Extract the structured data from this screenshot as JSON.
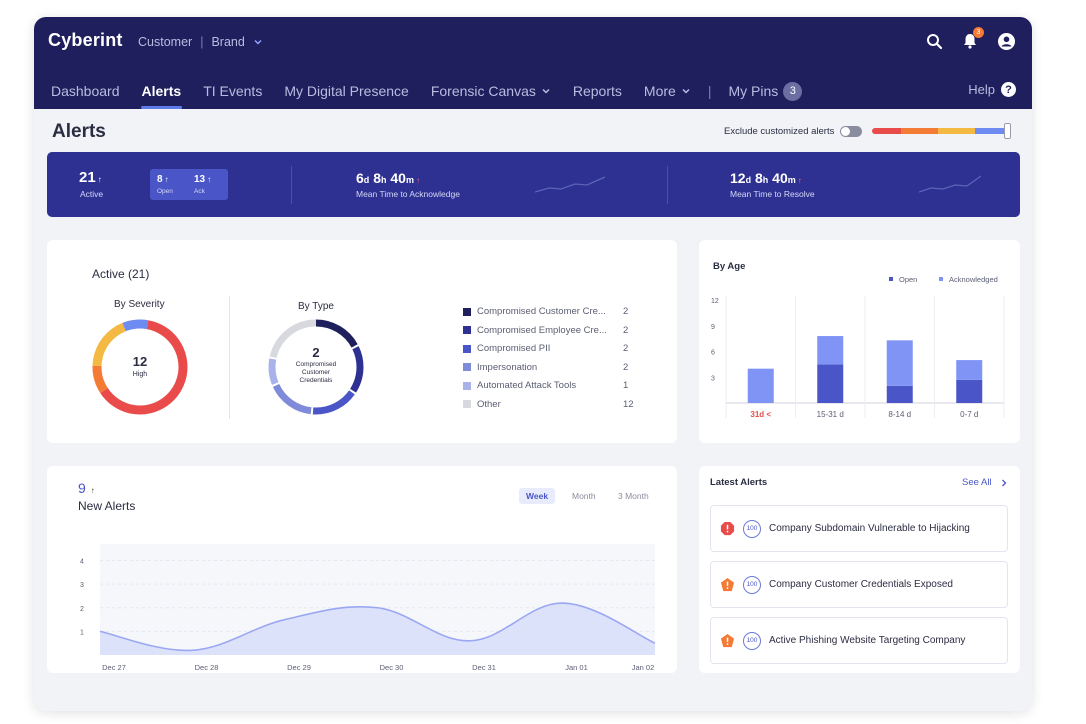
{
  "app": {
    "logo": "Cyberint",
    "crumb_customer": "Customer",
    "crumb_brand": "Brand",
    "notifications_count": "3"
  },
  "nav": {
    "items": [
      "Dashboard",
      "Alerts",
      "TI Events",
      "My Digital Presence",
      "Forensic Canvas",
      "Reports",
      "More"
    ],
    "active": "Alerts",
    "pins_label": "My Pins",
    "pins_count": "3",
    "help_label": "Help",
    "help_icon": "?"
  },
  "page": {
    "title": "Alerts",
    "exclude_label": "Exclude customized alerts",
    "severity_colors": [
      "#e94b4b",
      "#f47b35",
      "#f4b942",
      "#6d8bf0"
    ]
  },
  "stats": {
    "active_value": "21",
    "active_label": "Active",
    "open_value": "8",
    "open_label": "Open",
    "ack_value": "13",
    "ack_label": "Ack",
    "mtta_days": "6",
    "mtta_hours": "8",
    "mtta_minutes": "40",
    "mtta_label": "Mean Time to Acknowledge",
    "mttr_days": "12",
    "mttr_hours": "8",
    "mttr_minutes": "40",
    "mttr_label": "Mean Time to Resolve",
    "unit_d": "d",
    "unit_h": "h",
    "unit_m": "m"
  },
  "active_card": {
    "title": "Active (21)",
    "severity_title": "By Severity",
    "severity_value": "12",
    "severity_label": "High",
    "type_title": "By Type",
    "type_value": "2",
    "type_label_line1": "Compromised",
    "type_label_line2": "Customer",
    "type_label_line3": "Credentials",
    "legend": [
      {
        "label": "Compromised Customer Cre...",
        "value": "2",
        "color": "#1e1f5c"
      },
      {
        "label": "Compromised Employee Cre...",
        "value": "2",
        "color": "#2e3192"
      },
      {
        "label": "Compromised PII",
        "value": "2",
        "color": "#4a56c8"
      },
      {
        "label": "Impersonation",
        "value": "2",
        "color": "#7f8ad8"
      },
      {
        "label": "Automated Attack Tools",
        "value": "1",
        "color": "#aab2ea"
      },
      {
        "label": "Other",
        "value": "12",
        "color": "#d8d9de"
      }
    ]
  },
  "chart_data": [
    {
      "type": "bar",
      "title": "By Age",
      "categories": [
        "31d <",
        "15-31 d",
        "8-14 d",
        "0-7 d"
      ],
      "series": [
        {
          "name": "Open",
          "values": [
            0,
            4.5,
            2,
            2.7
          ]
        },
        {
          "name": "Acknowledged",
          "values": [
            4,
            3.3,
            5.3,
            2.3
          ]
        }
      ],
      "yticks": [
        "3",
        "6",
        "9",
        "12"
      ],
      "ylim": [
        0,
        12
      ],
      "legend": "top-right",
      "colors": {
        "Open": "#4a56c8",
        "Acknowledged": "#7f94f5"
      }
    },
    {
      "type": "area",
      "title": "New Alerts",
      "count": "9",
      "x": [
        "Dec 27",
        "Dec 28",
        "Dec 29",
        "Dec 30",
        "Dec 31",
        "Jan 01",
        "Jan 02"
      ],
      "values": [
        1,
        0.2,
        1.5,
        2,
        0.6,
        2.2,
        0.5
      ],
      "yticks": [
        "1",
        "2",
        "3",
        "4"
      ],
      "ylim": [
        0,
        4.7
      ],
      "tabs": [
        "Week",
        "Month",
        "3 Month"
      ],
      "active_tab": "Week"
    }
  ],
  "latest_alerts": {
    "title": "Latest Alerts",
    "see_all": "See All",
    "items": [
      {
        "text": "Company Subdomain Vulnerable to Hijacking",
        "severity": "critical",
        "color": "#e94b4b",
        "badge": "100"
      },
      {
        "text": "Company Customer Credentials Exposed",
        "severity": "high",
        "color": "#f47b35",
        "badge": "100"
      },
      {
        "text": "Active Phishing Website Targeting Company",
        "severity": "high",
        "color": "#f47b35",
        "badge": "100"
      }
    ]
  }
}
